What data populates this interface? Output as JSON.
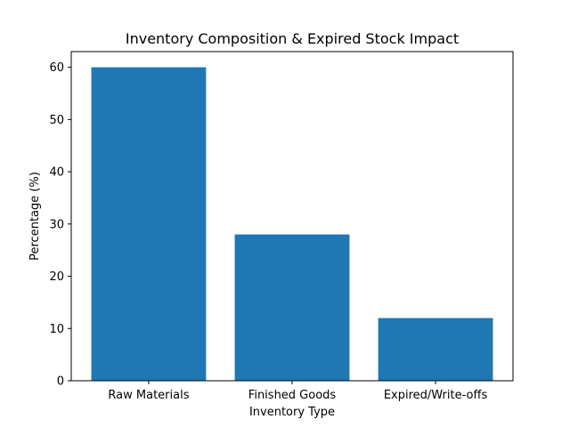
{
  "chart_data": {
    "type": "bar",
    "title": "Inventory Composition & Expired Stock Impact",
    "xlabel": "Inventory Type",
    "ylabel": "Percentage (%)",
    "categories": [
      "Raw Materials",
      "Finished Goods",
      "Expired/Write-offs"
    ],
    "values": [
      60,
      28,
      12
    ],
    "ylim": [
      0,
      63
    ],
    "yticks": [
      0,
      10,
      20,
      30,
      40,
      50,
      60
    ],
    "grid": false,
    "legend": "none",
    "bar_color": "#1f77b4"
  }
}
